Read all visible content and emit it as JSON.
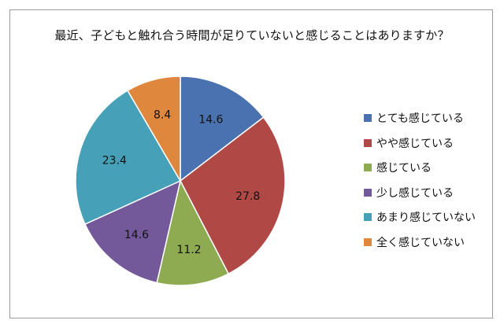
{
  "chart_data": {
    "type": "pie",
    "title": "最近、子どもと触れ合う時間が足りていないと感じることはありますか？",
    "categories": [
      "とても感じている",
      "やや感じている",
      "感じている",
      "少し感じている",
      "あまり感じていない",
      "全く感じていない"
    ],
    "values": [
      14.6,
      27.8,
      11.2,
      14.6,
      23.4,
      8.4
    ],
    "colors": [
      "#4a72b0",
      "#b04945",
      "#8eab52",
      "#73589a",
      "#46a0b7",
      "#e0873e"
    ],
    "legend_position": "right",
    "start_angle_deg": 0,
    "direction": "clockwise"
  }
}
